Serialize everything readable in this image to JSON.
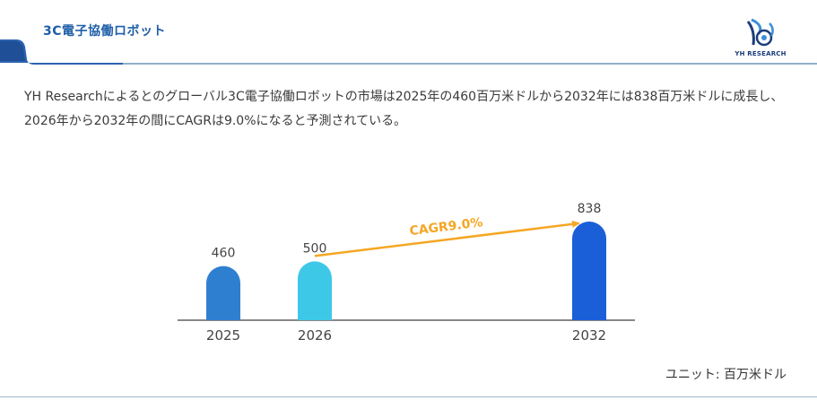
{
  "header": {
    "title": "3C電子協働ロボット"
  },
  "logo": {
    "text": "YH RESEARCH",
    "colors": {
      "primary": "#1b3d7a",
      "accent": "#3b8fd6"
    }
  },
  "description": "YH Researchによるとのグローバル3C電子協働ロボットの市場は2025年の460百万米ドルから2032年には838百万米ドルに成長し、2026年から2032年の間にCAGRは9.0%になると予測されている。",
  "unit_label": "ユニット: 百万米ドル",
  "chart_data": {
    "type": "bar",
    "categories": [
      "2025",
      "2026",
      "2032"
    ],
    "values": [
      460,
      500,
      838
    ],
    "bar_colors": [
      "#2f7fd0",
      "#3ec8e8",
      "#1a5fd8"
    ],
    "annotation": {
      "text": "CAGR9.0%",
      "from": "2026",
      "to": "2032",
      "color": "#f5a623"
    },
    "ylim": [
      0,
      838
    ],
    "grid": false,
    "title": "",
    "xlabel": "",
    "ylabel": ""
  }
}
